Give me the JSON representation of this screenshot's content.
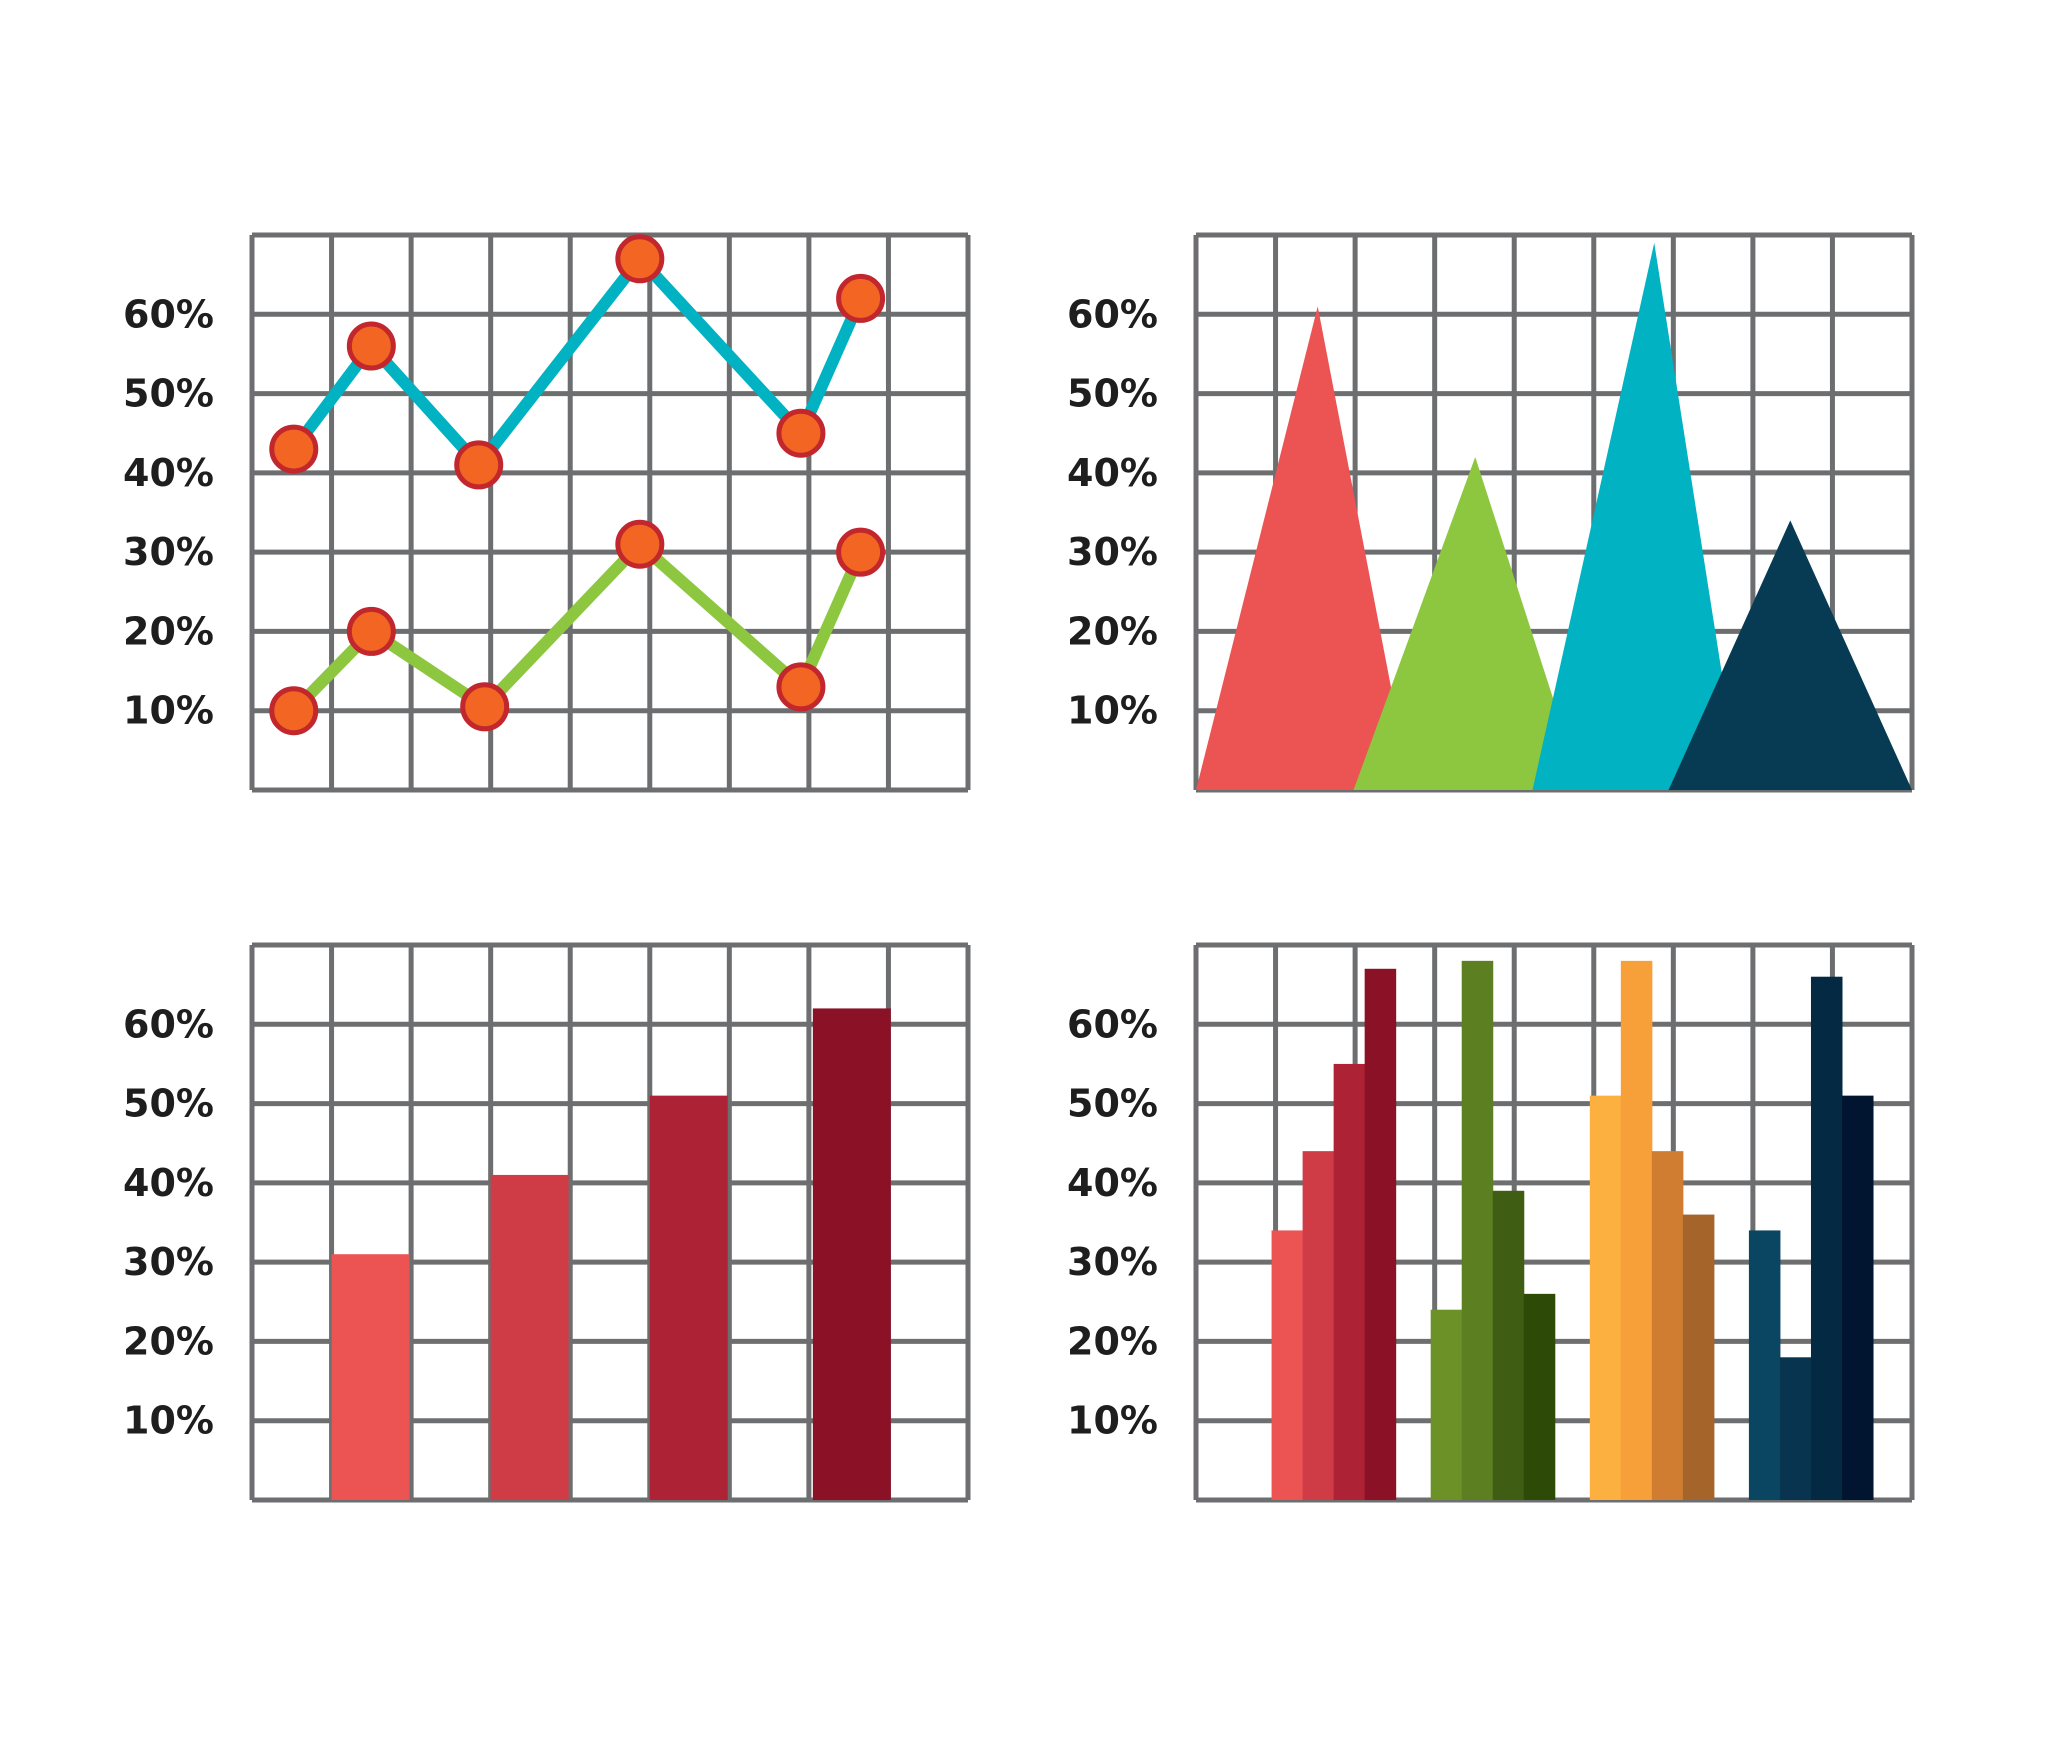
{
  "chart_data": [
    {
      "type": "line",
      "title": "",
      "xlabel": "",
      "ylabel": "",
      "ylim": [
        0,
        70
      ],
      "y_ticks": [
        "10%",
        "20%",
        "30%",
        "40%",
        "50%",
        "60%"
      ],
      "grid": true,
      "x": [
        0.35,
        1.0,
        1.9,
        2.6,
        3.8,
        4.6,
        5.1
      ],
      "series": [
        {
          "values": [
            43,
            56,
            41,
            67,
            45,
            62
          ],
          "x": [
            0.35,
            1.0,
            1.9,
            3.25,
            4.6,
            5.1
          ]
        },
        {
          "values": [
            10,
            20,
            10.5,
            31,
            13,
            30
          ],
          "x": [
            0.35,
            1.0,
            1.95,
            3.25,
            4.6,
            5.1
          ]
        }
      ],
      "colors": {
        "line_1": "#00b2c2",
        "line_2": "#8dc63f",
        "marker_fill": "#f26522",
        "marker_edge": "#c1272d"
      }
    },
    {
      "type": "area",
      "title": "",
      "xlabel": "",
      "ylabel": "",
      "ylim": [
        0,
        70
      ],
      "y_ticks": [
        "10%",
        "20%",
        "30%",
        "40%",
        "50%",
        "60%"
      ],
      "grid": true,
      "peaks": [
        {
          "value": 61,
          "color": "#ec5353"
        },
        {
          "value": 42,
          "color": "#8dc63f"
        },
        {
          "value": 69,
          "color": "#00b2c2"
        },
        {
          "value": 34,
          "color": "#073b54"
        }
      ]
    },
    {
      "type": "bar",
      "title": "",
      "xlabel": "",
      "ylabel": "",
      "ylim": [
        0,
        70
      ],
      "y_ticks": [
        "10%",
        "20%",
        "30%",
        "40%",
        "50%",
        "60%"
      ],
      "grid": true,
      "values": [
        31,
        41,
        51,
        62
      ],
      "colors": [
        "#ec5353",
        "#d03c46",
        "#ae2235",
        "#8b1127"
      ]
    },
    {
      "type": "bar",
      "title": "",
      "xlabel": "",
      "ylabel": "",
      "ylim": [
        0,
        70
      ],
      "y_ticks": [
        "10%",
        "20%",
        "30%",
        "40%",
        "50%",
        "60%"
      ],
      "grid": true,
      "groups": [
        {
          "values": [
            34,
            44,
            55,
            67
          ],
          "colors": [
            "#ec5353",
            "#d03c46",
            "#ae2235",
            "#8b1127"
          ]
        },
        {
          "values": [
            24,
            68,
            39,
            26
          ],
          "colors": [
            "#6b9127",
            "#5c7f21",
            "#3f5e14",
            "#2e4a07"
          ]
        },
        {
          "values": [
            51,
            68,
            44,
            36
          ],
          "colors": [
            "#fbb040",
            "#f7a03a",
            "#d07d32",
            "#a5652a"
          ]
        },
        {
          "values": [
            34,
            18,
            66,
            51
          ],
          "colors": [
            "#0a4662",
            "#083450",
            "#032a42",
            "#021530"
          ]
        }
      ]
    }
  ],
  "colors": {
    "grid": "#6d6e70",
    "text": "#1e1e1e",
    "background": "#ffffff"
  }
}
